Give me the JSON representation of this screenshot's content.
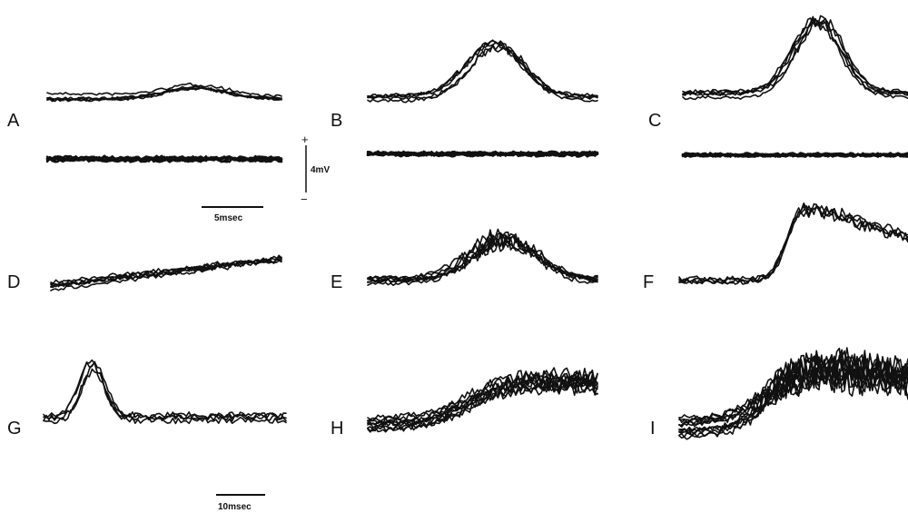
{
  "panels": [
    "A",
    "B",
    "C",
    "D",
    "E",
    "F",
    "G",
    "H",
    "I"
  ],
  "scale_bars": {
    "time_top": "5msec",
    "voltage": "4mV",
    "voltage_plus": "+",
    "voltage_minus": "−",
    "time_bottom": "10msec"
  }
}
